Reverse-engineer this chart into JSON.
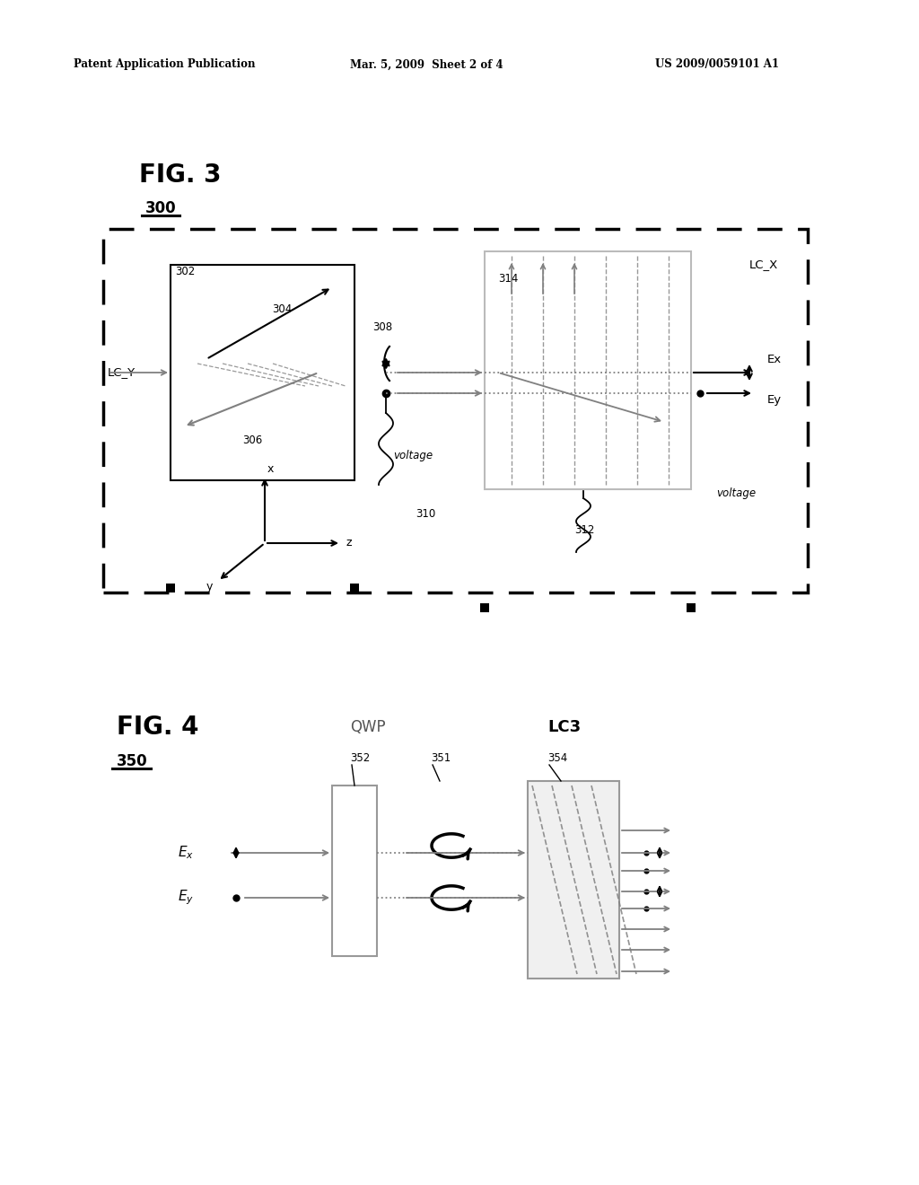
{
  "header_left": "Patent Application Publication",
  "header_center": "Mar. 5, 2009  Sheet 2 of 4",
  "header_right": "US 2009/0059101 A1",
  "fig3_title": "FIG. 3",
  "fig3_label": "300",
  "fig4_title": "FIG. 4",
  "fig4_label": "350",
  "bg_color": "#ffffff",
  "line_color": "#000000",
  "gray_color": "#aaaaaa"
}
